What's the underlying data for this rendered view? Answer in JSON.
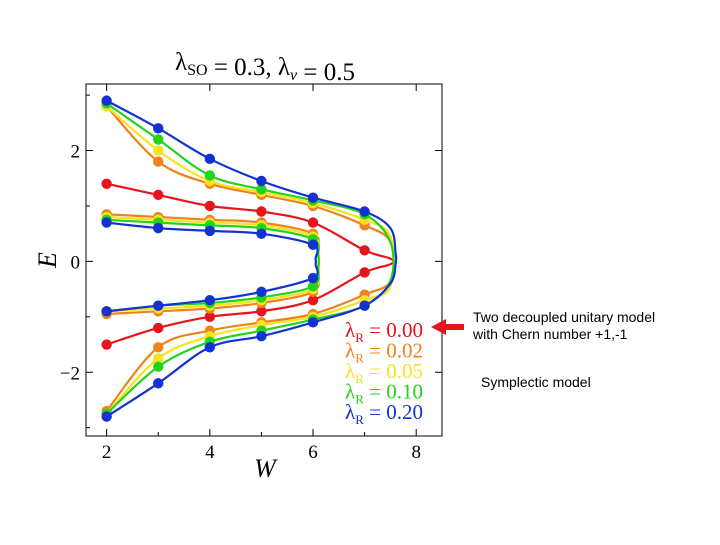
{
  "notes": {
    "decoupled_line1": "Two decoupled unitary model",
    "decoupled_line2": "with Chern number +1,-1",
    "symplectic": "Symplectic model"
  },
  "colors": {
    "arrow": "#e8141c"
  },
  "chart_data": {
    "type": "line",
    "title": "λSO = 0.3, λv = 0.5",
    "xlabel": "W",
    "ylabel": "E",
    "xlim": [
      1.6,
      8.5
    ],
    "ylim": [
      -3.15,
      3.2
    ],
    "xticks": [
      2,
      4,
      6,
      8
    ],
    "yticks": [
      -2,
      0,
      2
    ],
    "grid": false,
    "legend_position": "bottom-right",
    "series": [
      {
        "name": "λR = 0.00",
        "color": "#e8141c",
        "upper": [
          [
            2,
            1.4
          ],
          [
            3,
            1.2
          ],
          [
            4,
            1.0
          ],
          [
            5,
            0.9
          ],
          [
            6,
            0.7
          ],
          [
            7,
            0.2
          ],
          [
            7.5,
            0.05
          ]
        ],
        "lower": [
          [
            2,
            -1.5
          ],
          [
            3,
            -1.2
          ],
          [
            4,
            -1.0
          ],
          [
            5,
            -0.9
          ],
          [
            6,
            -0.7
          ],
          [
            7,
            -0.2
          ],
          [
            7.5,
            -0.05
          ]
        ]
      },
      {
        "name": "λR = 0.02",
        "color": "#f0821e",
        "upper_outer": [
          [
            2,
            2.8
          ],
          [
            3,
            1.8
          ],
          [
            4,
            1.4
          ],
          [
            5,
            1.2
          ],
          [
            6,
            1.0
          ],
          [
            7,
            0.65
          ],
          [
            7.5,
            0.35
          ]
        ],
        "upper_inner": [
          [
            2,
            0.85
          ],
          [
            3,
            0.8
          ],
          [
            4,
            0.75
          ],
          [
            5,
            0.7
          ],
          [
            6,
            0.5
          ],
          [
            6.1,
            0.2
          ]
        ],
        "lower_inner": [
          [
            2,
            -0.95
          ],
          [
            3,
            -0.9
          ],
          [
            4,
            -0.85
          ],
          [
            5,
            -0.75
          ],
          [
            6,
            -0.55
          ],
          [
            6.1,
            -0.2
          ]
        ],
        "lower_outer": [
          [
            2,
            -2.7
          ],
          [
            3,
            -1.55
          ],
          [
            4,
            -1.25
          ],
          [
            5,
            -1.1
          ],
          [
            6,
            -0.95
          ],
          [
            7,
            -0.6
          ],
          [
            7.5,
            -0.35
          ]
        ]
      },
      {
        "name": "λR = 0.05",
        "color": "#f7e31e",
        "upper_outer": [
          [
            2,
            2.8
          ],
          [
            3,
            2.0
          ],
          [
            4,
            1.45
          ],
          [
            5,
            1.25
          ],
          [
            6,
            1.05
          ],
          [
            7,
            0.75
          ],
          [
            7.5,
            0.45
          ]
        ],
        "upper_inner": [
          [
            2,
            0.8
          ],
          [
            3,
            0.75
          ],
          [
            4,
            0.7
          ],
          [
            5,
            0.65
          ],
          [
            6,
            0.45
          ],
          [
            6.1,
            0.15
          ]
        ],
        "lower_inner": [
          [
            2,
            -0.9
          ],
          [
            3,
            -0.85
          ],
          [
            4,
            -0.8
          ],
          [
            5,
            -0.7
          ],
          [
            6,
            -0.5
          ],
          [
            6.1,
            -0.15
          ]
        ],
        "lower_outer": [
          [
            2,
            -2.75
          ],
          [
            3,
            -1.75
          ],
          [
            4,
            -1.35
          ],
          [
            5,
            -1.15
          ],
          [
            6,
            -1.0
          ],
          [
            7,
            -0.7
          ],
          [
            7.5,
            -0.45
          ]
        ]
      },
      {
        "name": "λR = 0.10",
        "color": "#22d41a",
        "upper_outer": [
          [
            2,
            2.85
          ],
          [
            3,
            2.2
          ],
          [
            4,
            1.55
          ],
          [
            5,
            1.3
          ],
          [
            6,
            1.1
          ],
          [
            7,
            0.85
          ],
          [
            7.5,
            0.35
          ]
        ],
        "upper_inner": [
          [
            2,
            0.75
          ],
          [
            3,
            0.7
          ],
          [
            4,
            0.65
          ],
          [
            5,
            0.6
          ],
          [
            6,
            0.4
          ],
          [
            6.1,
            0.1
          ]
        ],
        "lower_inner": [
          [
            2,
            -0.9
          ],
          [
            3,
            -0.8
          ],
          [
            4,
            -0.75
          ],
          [
            5,
            -0.65
          ],
          [
            6,
            -0.45
          ],
          [
            6.1,
            -0.1
          ]
        ],
        "lower_outer": [
          [
            2,
            -2.75
          ],
          [
            3,
            -1.9
          ],
          [
            4,
            -1.45
          ],
          [
            5,
            -1.25
          ],
          [
            6,
            -1.05
          ],
          [
            7,
            -0.8
          ],
          [
            7.5,
            -0.35
          ]
        ]
      },
      {
        "name": "λR = 0.20",
        "color": "#1432d2",
        "upper_outer": [
          [
            2,
            2.9
          ],
          [
            3,
            2.4
          ],
          [
            4,
            1.85
          ],
          [
            5,
            1.45
          ],
          [
            6,
            1.15
          ],
          [
            7,
            0.9
          ],
          [
            7.5,
            0.6
          ],
          [
            7.6,
            0.15
          ]
        ],
        "upper_inner": [
          [
            2,
            0.7
          ],
          [
            3,
            0.6
          ],
          [
            4,
            0.55
          ],
          [
            5,
            0.5
          ],
          [
            6,
            0.3
          ],
          [
            6.05,
            0.05
          ]
        ],
        "lower_inner": [
          [
            2,
            -0.9
          ],
          [
            3,
            -0.8
          ],
          [
            4,
            -0.7
          ],
          [
            5,
            -0.55
          ],
          [
            6,
            -0.3
          ],
          [
            6.05,
            -0.05
          ]
        ],
        "lower_outer": [
          [
            2,
            -2.8
          ],
          [
            3,
            -2.2
          ],
          [
            4,
            -1.55
          ],
          [
            5,
            -1.35
          ],
          [
            6,
            -1.1
          ],
          [
            7,
            -0.8
          ],
          [
            7.5,
            -0.4
          ],
          [
            7.6,
            -0.05
          ]
        ]
      }
    ]
  }
}
